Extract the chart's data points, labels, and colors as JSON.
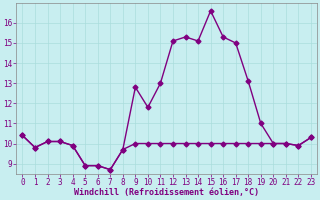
{
  "xlabel": "Windchill (Refroidissement éolien,°C)",
  "x": [
    0,
    1,
    2,
    3,
    4,
    5,
    6,
    7,
    8,
    9,
    10,
    11,
    12,
    13,
    14,
    15,
    16,
    17,
    18,
    19,
    20,
    21,
    22,
    23
  ],
  "y_line1": [
    10.4,
    9.8,
    10.1,
    10.1,
    9.9,
    8.9,
    8.9,
    8.7,
    9.7,
    12.8,
    11.8,
    13.0,
    15.1,
    15.3,
    15.1,
    16.6,
    15.3,
    15.0,
    13.1,
    11.0,
    10.0,
    10.0,
    9.9,
    10.3
  ],
  "y_line2": [
    10.4,
    9.8,
    10.1,
    10.1,
    9.9,
    8.9,
    8.9,
    8.7,
    9.7,
    10.0,
    10.0,
    10.0,
    10.0,
    10.0,
    10.0,
    10.0,
    10.0,
    10.0,
    10.0,
    10.0,
    10.0,
    10.0,
    9.9,
    10.3
  ],
  "line_color": "#800080",
  "bg_color": "#c8eef0",
  "grid_color": "#aadddd",
  "ylim": [
    8.5,
    17.0
  ],
  "yticks": [
    9,
    10,
    11,
    12,
    13,
    14,
    15,
    16
  ],
  "marker": "D",
  "markersize": 2.5,
  "linewidth": 1.0,
  "tick_fontsize": 5.5,
  "xlabel_fontsize": 6.0
}
